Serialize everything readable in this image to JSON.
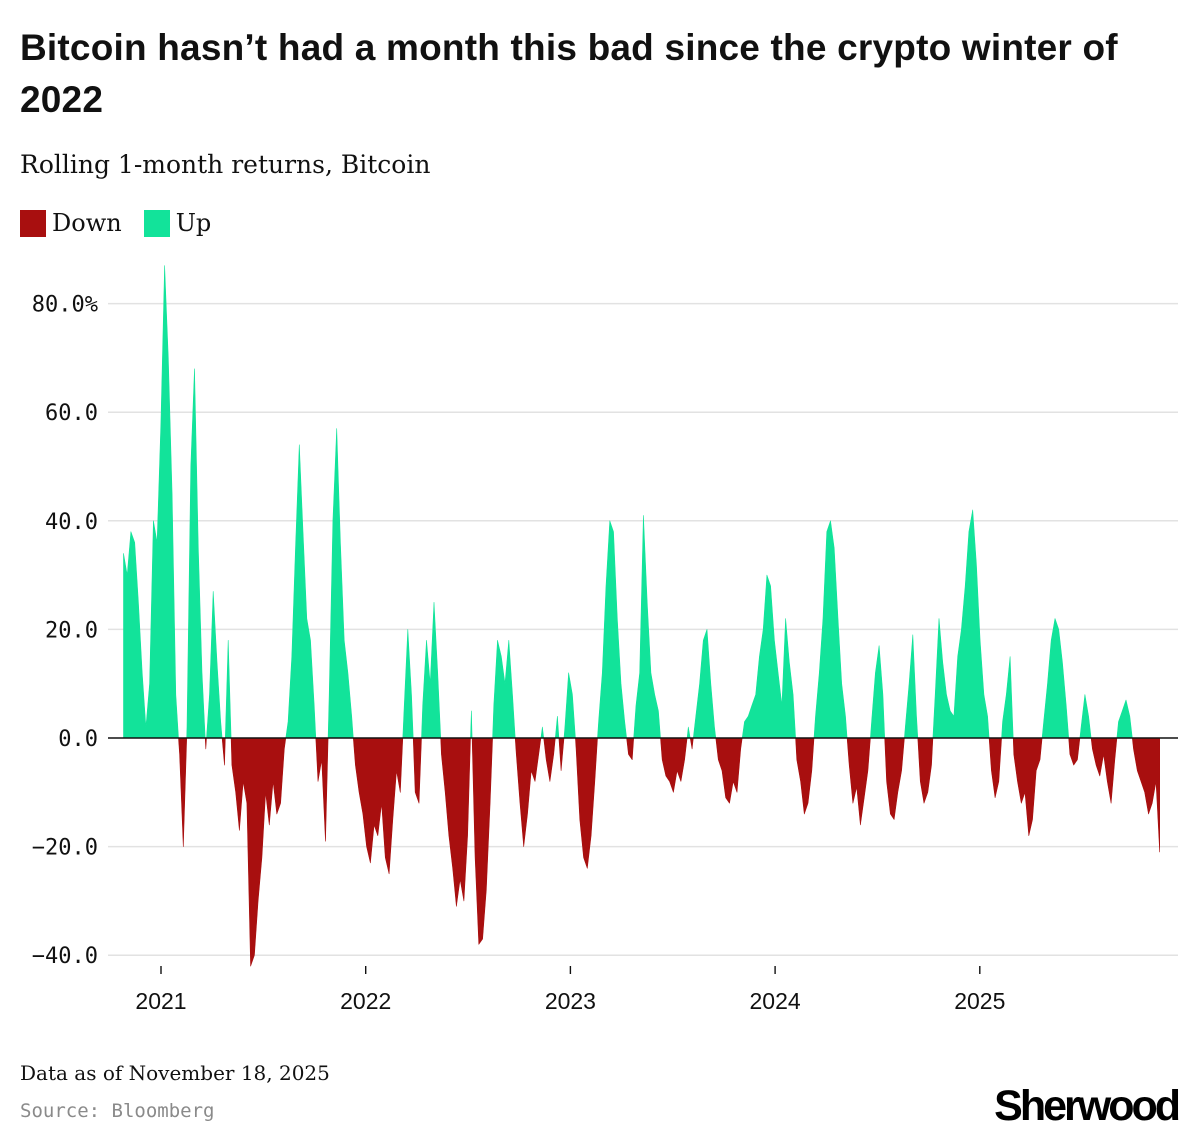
{
  "header": {
    "title": "Bitcoin hasn’t had a month this bad since the crypto winter of 2022",
    "subtitle": "Rolling 1-month returns, Bitcoin"
  },
  "legend": [
    {
      "label": "Down",
      "color": "#a80f0f"
    },
    {
      "label": "Up",
      "color": "#12e39a"
    }
  ],
  "footer": {
    "note": "Data as of November 18, 2025",
    "source": "Source: Bloomberg",
    "brand": "Sherwood"
  },
  "chart_data": {
    "type": "area",
    "title": "Bitcoin hasn’t had a month this bad since the crypto winter of 2022",
    "subtitle": "Rolling 1-month returns, Bitcoin",
    "xlabel": "",
    "ylabel": "",
    "x_start": "2020-10-26",
    "x_end": "2025-11-18",
    "x_step": "weekly",
    "ylim": [
      -44,
      88
    ],
    "yticks": [
      80,
      60,
      40,
      20,
      0,
      -20,
      -40
    ],
    "ytick_labels": [
      "80.0%",
      "60.0",
      "40.0",
      "20.0",
      "0.0",
      "−20.0",
      "−40.0"
    ],
    "xticks": [
      2021,
      2022,
      2023,
      2024,
      2025
    ],
    "xtick_labels": [
      "2021",
      "2022",
      "2023",
      "2024",
      "2025"
    ],
    "grid": true,
    "legend_position": "top-left",
    "series": [
      {
        "name": "Up",
        "color": "#12e39a",
        "rule": "value > 0"
      },
      {
        "name": "Down",
        "color": "#a80f0f",
        "rule": "value < 0"
      }
    ],
    "values": [
      34,
      30,
      38,
      36,
      25,
      12,
      2,
      10,
      40,
      36,
      58,
      87,
      70,
      45,
      8,
      -3,
      -20,
      2,
      50,
      68,
      35,
      12,
      -2,
      8,
      27,
      14,
      3,
      -5,
      18,
      -5,
      -10,
      -17,
      -8,
      -12,
      -42,
      -40,
      -30,
      -22,
      -10,
      -16,
      -8,
      -14,
      -12,
      -2,
      3,
      15,
      35,
      54,
      38,
      22,
      18,
      6,
      -8,
      -4,
      -19,
      8,
      40,
      57,
      36,
      18,
      12,
      4,
      -5,
      -10,
      -14,
      -20,
      -23,
      -16,
      -18,
      -12,
      -22,
      -25,
      -15,
      -6,
      -10,
      5,
      20,
      8,
      -10,
      -12,
      6,
      18,
      10,
      25,
      12,
      -3,
      -10,
      -18,
      -24,
      -31,
      -26,
      -30,
      -18,
      5,
      -22,
      -38,
      -37,
      -28,
      -12,
      6,
      18,
      15,
      10,
      18,
      8,
      -3,
      -12,
      -20,
      -14,
      -6,
      -8,
      -3,
      2,
      -4,
      -8,
      -3,
      4,
      -6,
      2,
      12,
      8,
      -2,
      -15,
      -22,
      -24,
      -18,
      -8,
      3,
      12,
      28,
      40,
      38,
      22,
      10,
      3,
      -3,
      -4,
      6,
      12,
      41,
      25,
      12,
      8,
      5,
      -4,
      -7,
      -8,
      -10,
      -6,
      -8,
      -4,
      2,
      -2,
      4,
      10,
      18,
      20,
      10,
      2,
      -4,
      -6,
      -11,
      -12,
      -8,
      -10,
      -2,
      3,
      4,
      6,
      8,
      15,
      20,
      30,
      28,
      18,
      12,
      6,
      22,
      14,
      8,
      -4,
      -8,
      -14,
      -12,
      -6,
      4,
      12,
      22,
      38,
      40,
      35,
      22,
      10,
      4,
      -5,
      -12,
      -9,
      -16,
      -11,
      -6,
      3,
      12,
      17,
      8,
      -8,
      -14,
      -15,
      -10,
      -6,
      2,
      10,
      19,
      4,
      -8,
      -12,
      -10,
      -5,
      8,
      22,
      14,
      8,
      5,
      4,
      15,
      20,
      28,
      38,
      42,
      32,
      18,
      8,
      4,
      -6,
      -11,
      -8,
      3,
      8,
      15,
      -3,
      -8,
      -12,
      -10,
      -18,
      -15,
      -6,
      -4,
      3,
      10,
      18,
      22,
      20,
      14,
      6,
      -3,
      -5,
      -4,
      2,
      8,
      4,
      -2,
      -5,
      -7,
      -3,
      -8,
      -12,
      -4,
      3,
      5,
      7,
      4,
      -2,
      -6,
      -8,
      -10,
      -14,
      -12,
      -8,
      -21
    ]
  }
}
